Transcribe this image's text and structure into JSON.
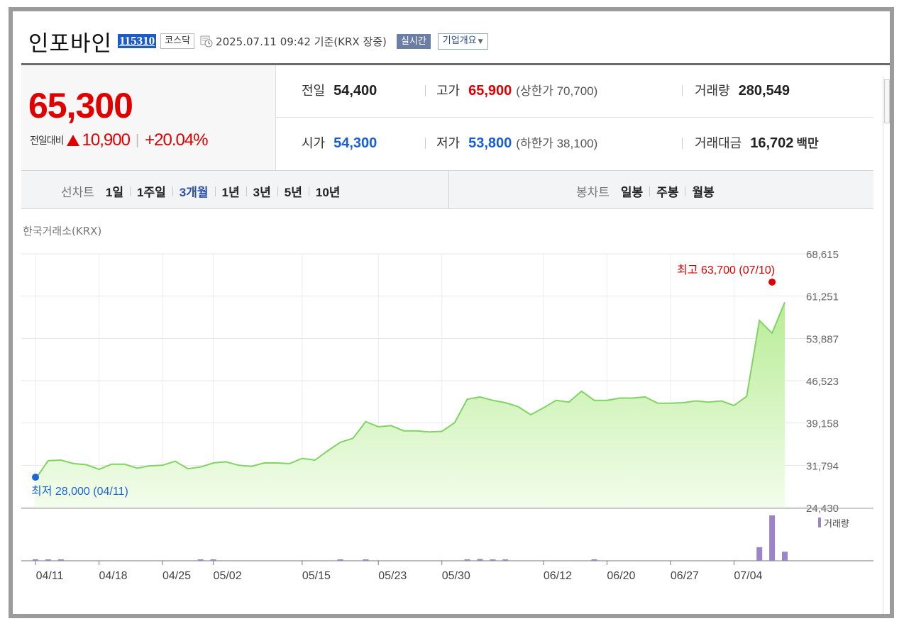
{
  "stock": {
    "name": "인포바인",
    "code": "115310",
    "market": "코스닥",
    "timestamp": "2025.07.11 09:42 기준(KRX 장중)",
    "realtime_label": "실시간",
    "overview_label": "기업개요"
  },
  "price": {
    "current": "65,300",
    "change_label": "전일대비",
    "change_value": "10,900",
    "change_pct": "+20.04%",
    "direction": "up"
  },
  "stats": {
    "prev_close": {
      "label": "전일",
      "value": "54,400"
    },
    "open": {
      "label": "시가",
      "value": "54,300"
    },
    "high": {
      "label": "고가",
      "value": "65,900",
      "sub": "(상한가 70,700)"
    },
    "low": {
      "label": "저가",
      "value": "53,800",
      "sub": "(하한가 38,100)"
    },
    "volume": {
      "label": "거래량",
      "value": "280,549"
    },
    "amount": {
      "label": "거래대금",
      "value": "16,702",
      "unit": "백만"
    }
  },
  "toolbar": {
    "line_chart_label": "선차트",
    "periods": [
      "1일",
      "1주일",
      "3개월",
      "1년",
      "3년",
      "5년",
      "10년"
    ],
    "active_period": "3개월",
    "candle_chart_label": "봉차트",
    "candle_periods": [
      "일봉",
      "주봉",
      "월봉"
    ]
  },
  "chart_data": {
    "type": "area",
    "exchange_label": "한국거래소(KRX)",
    "y_ticks": [
      "68,615",
      "61,251",
      "53,887",
      "46,523",
      "39,158",
      "31,794",
      "24,430"
    ],
    "y_tick_values": [
      68615,
      61251,
      53887,
      46523,
      39158,
      31794,
      24430
    ],
    "ylim": [
      24430,
      68615
    ],
    "x_ticks": [
      "04/11",
      "04/18",
      "04/25",
      "05/02",
      "05/15",
      "05/23",
      "05/30",
      "06/12",
      "06/20",
      "06/27",
      "07/04"
    ],
    "x_tick_index": [
      0,
      5,
      10,
      14,
      21,
      27,
      32,
      40,
      45,
      50,
      55
    ],
    "values": [
      29400,
      32600,
      32700,
      32100,
      31900,
      31100,
      32000,
      32000,
      31300,
      31700,
      31800,
      32500,
      31200,
      31500,
      32200,
      32400,
      31800,
      31600,
      32200,
      32200,
      32100,
      33000,
      32700,
      34300,
      35800,
      36500,
      39400,
      38500,
      38700,
      37800,
      37800,
      37600,
      37700,
      39200,
      43300,
      43700,
      43100,
      42700,
      42000,
      40600,
      41800,
      43100,
      42800,
      44700,
      43100,
      43100,
      43500,
      43500,
      43700,
      42600,
      42600,
      42700,
      43000,
      42800,
      43000,
      42200,
      43800,
      57000,
      54800,
      60200
    ],
    "volume": [
      0.02,
      0.02,
      0.02,
      0.0,
      0.0,
      0.0,
      0.0,
      0.0,
      0.0,
      0.0,
      0.0,
      0.0,
      0.0,
      0.02,
      0.02,
      0.0,
      0.0,
      0.0,
      0.0,
      0.0,
      0.0,
      0.0,
      0.0,
      0.0,
      0.02,
      0.0,
      0.02,
      0.0,
      0.0,
      0.0,
      0.0,
      0.0,
      0.0,
      0.0,
      0.02,
      0.04,
      0.03,
      0.02,
      0.0,
      0.0,
      0.0,
      0.0,
      0.0,
      0.0,
      0.02,
      0.0,
      0.0,
      0.0,
      0.0,
      0.0,
      0.0,
      0.0,
      0.0,
      0.0,
      0.0,
      0.0,
      0.0,
      0.3,
      1.0,
      0.2
    ],
    "high": {
      "label": "최고 63,700 (07/10)",
      "value": 63700,
      "index": 58
    },
    "low": {
      "label": "최저 28,000 (04/11)",
      "value": 28000,
      "index": 0
    },
    "volume_legend": "거래량",
    "colors": {
      "line": "#7fd463",
      "fill_top": "#b8ec96",
      "fill_bottom": "#f3fdec",
      "high": "#e00000",
      "low": "#1a66d6",
      "volume": "#9b84c9"
    }
  }
}
